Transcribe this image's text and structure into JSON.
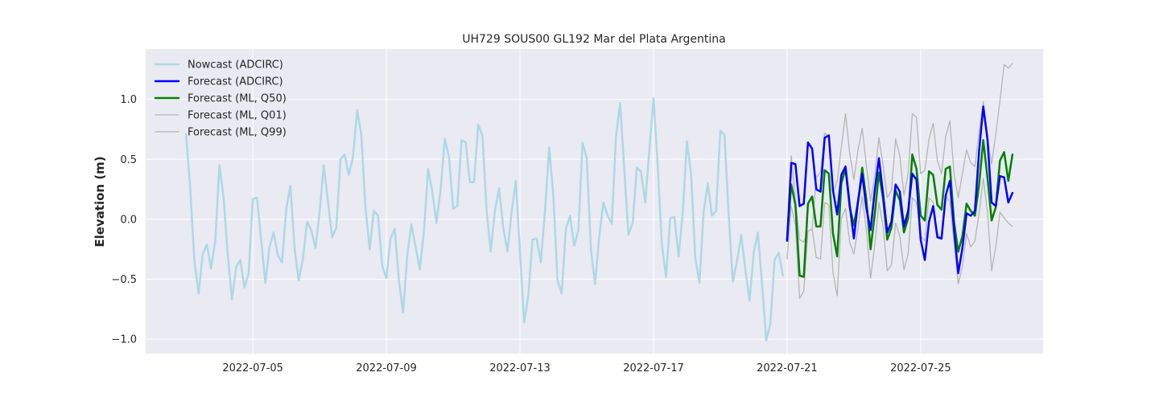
{
  "chart_data": {
    "type": "line",
    "title": "UH729 SOUS00 GL192 Mar del Plata Argentina",
    "xlabel": "",
    "ylabel": "Elevation (m)",
    "xlim": [
      "2022-07-01T19:00",
      "2022-07-28T16:00"
    ],
    "ylim": [
      -1.12,
      1.42
    ],
    "x_ticks": [
      "2022-07-05",
      "2022-07-09",
      "2022-07-13",
      "2022-07-17",
      "2022-07-21",
      "2022-07-25"
    ],
    "y_ticks": [
      1.0,
      0.5,
      0.0,
      -0.5,
      -1.0
    ],
    "y_tick_labels": [
      "1.0",
      "0.5",
      "0.0",
      "−0.5",
      "−1.0"
    ],
    "grid": true,
    "legend_position": "top-left",
    "plot_background": "#EAEAF2",
    "series": [
      {
        "name": "Nowcast (ADCIRC)",
        "color": "#ADD8E6",
        "line_width": 2.5,
        "x_start": "2022-07-03T00:00",
        "x_step_hours": 3,
        "values": [
          0.71,
          0.26,
          -0.34,
          -0.62,
          -0.29,
          -0.21,
          -0.41,
          -0.18,
          0.45,
          0.18,
          -0.3,
          -0.67,
          -0.4,
          -0.34,
          -0.57,
          -0.45,
          0.17,
          0.18,
          -0.17,
          -0.53,
          -0.23,
          -0.11,
          -0.3,
          -0.36,
          0.08,
          0.28,
          -0.24,
          -0.51,
          -0.33,
          -0.02,
          -0.09,
          -0.24,
          0.06,
          0.45,
          0.15,
          -0.15,
          -0.07,
          0.5,
          0.54,
          0.37,
          0.52,
          0.91,
          0.7,
          0.09,
          -0.25,
          0.07,
          0.03,
          -0.39,
          -0.49,
          -0.16,
          -0.08,
          -0.51,
          -0.78,
          -0.3,
          -0.04,
          -0.23,
          -0.42,
          -0.1,
          0.42,
          0.23,
          -0.03,
          0.25,
          0.67,
          0.52,
          0.09,
          0.11,
          0.66,
          0.64,
          0.31,
          0.31,
          0.79,
          0.7,
          0.08,
          -0.27,
          0.07,
          0.26,
          -0.07,
          -0.27,
          0.06,
          0.32,
          -0.27,
          -0.86,
          -0.64,
          -0.17,
          -0.16,
          -0.36,
          0.07,
          0.6,
          0.2,
          -0.51,
          -0.62,
          -0.08,
          0.03,
          -0.22,
          -0.09,
          0.64,
          0.51,
          -0.25,
          -0.54,
          -0.14,
          0.14,
          0.03,
          -0.04,
          0.69,
          0.97,
          0.41,
          -0.13,
          -0.03,
          0.43,
          0.4,
          0.14,
          0.58,
          1.01,
          0.45,
          -0.21,
          -0.48,
          0.01,
          0.02,
          -0.31,
          0.05,
          0.65,
          0.38,
          -0.32,
          -0.53,
          0.06,
          0.3,
          0.03,
          0.07,
          0.74,
          0.7,
          0.04,
          -0.52,
          -0.35,
          -0.13,
          -0.42,
          -0.68,
          -0.28,
          -0.11,
          -0.54,
          -1.01,
          -0.87,
          -0.34,
          -0.28,
          -0.47
        ]
      },
      {
        "name": "Forecast (ADCIRC)",
        "color": "#0000FF",
        "line_width": 2.5,
        "x_start": "2022-07-21T00:00",
        "x_step_hours": 3,
        "values": [
          -0.18,
          0.47,
          0.46,
          0.11,
          0.13,
          0.64,
          0.59,
          0.25,
          0.23,
          0.68,
          0.7,
          0.24,
          0.04,
          0.37,
          0.44,
          0.12,
          -0.16,
          0.15,
          0.38,
          0.09,
          -0.09,
          0.24,
          0.51,
          0.21,
          -0.11,
          -0.02,
          0.29,
          0.23,
          -0.06,
          0.07,
          0.38,
          0.33,
          -0.17,
          -0.34,
          -0.02,
          0.11,
          -0.15,
          -0.16,
          0.2,
          0.32,
          -0.09,
          -0.45,
          -0.24,
          0.05,
          0.03,
          0.07,
          0.57,
          0.94,
          0.67,
          0.14,
          0.11,
          0.36,
          0.35,
          0.14,
          0.22
        ]
      },
      {
        "name": "Forecast (ML, Q50)",
        "color": "#008000",
        "line_width": 2.5,
        "x_start": "2022-07-21T00:00",
        "x_step_hours": 3,
        "values": [
          -0.17,
          0.29,
          0.12,
          -0.47,
          -0.48,
          0.13,
          0.19,
          -0.06,
          -0.06,
          0.41,
          0.38,
          -0.12,
          -0.31,
          0.3,
          0.42,
          0.1,
          -0.05,
          0.15,
          0.43,
          0.16,
          -0.25,
          0.04,
          0.39,
          0.17,
          -0.17,
          -0.07,
          0.24,
          0.16,
          -0.11,
          0.01,
          0.54,
          0.42,
          0.03,
          -0.01,
          0.4,
          0.37,
          0.12,
          0.08,
          0.42,
          0.44,
          -0.02,
          -0.27,
          -0.14,
          0.13,
          0.07,
          0.03,
          0.29,
          0.66,
          0.35,
          -0.01,
          0.1,
          0.49,
          0.56,
          0.32,
          0.54
        ]
      },
      {
        "name": "Forecast (ML, Q01)",
        "color": "#B5B5B5",
        "line_width": 1.3,
        "x_start": "2022-07-21T00:00",
        "x_step_hours": 3,
        "values": [
          -0.33,
          0.11,
          -0.05,
          -0.66,
          -0.6,
          -0.1,
          -0.08,
          -0.32,
          -0.33,
          0.14,
          0.12,
          -0.44,
          -0.64,
          0.01,
          0.09,
          -0.19,
          -0.29,
          -0.07,
          0.19,
          -0.09,
          -0.49,
          -0.22,
          0.14,
          -0.06,
          -0.43,
          -0.38,
          -0.03,
          -0.14,
          -0.42,
          -0.29,
          0.18,
          0.14,
          -0.14,
          -0.18,
          0.18,
          0.14,
          -0.11,
          -0.17,
          0.21,
          0.14,
          -0.2,
          -0.54,
          -0.39,
          -0.12,
          -0.23,
          -0.18,
          0.05,
          0.34,
          0.06,
          -0.43,
          -0.23,
          0.06,
          0.01,
          -0.03,
          -0.06
        ]
      },
      {
        "name": "Forecast (ML, Q99)",
        "color": "#B5B5B5",
        "line_width": 1.3,
        "x_start": "2022-07-21T00:00",
        "x_step_hours": 3,
        "values": [
          -0.15,
          0.53,
          0.16,
          -0.17,
          -0.19,
          -0.1,
          -0.08,
          0.35,
          0.39,
          0.72,
          0.69,
          0.21,
          0.32,
          0.6,
          0.88,
          0.55,
          0.33,
          0.58,
          0.76,
          0.45,
          0.15,
          0.36,
          0.68,
          0.45,
          0.18,
          0.24,
          0.67,
          0.53,
          0.2,
          0.38,
          0.88,
          0.85,
          0.38,
          0.41,
          0.67,
          0.8,
          0.49,
          0.38,
          0.69,
          0.82,
          0.38,
          0.18,
          0.38,
          0.58,
          0.47,
          0.44,
          0.73,
          0.98,
          0.69,
          0.46,
          0.71,
          0.99,
          1.29,
          1.26,
          1.3
        ]
      }
    ]
  }
}
